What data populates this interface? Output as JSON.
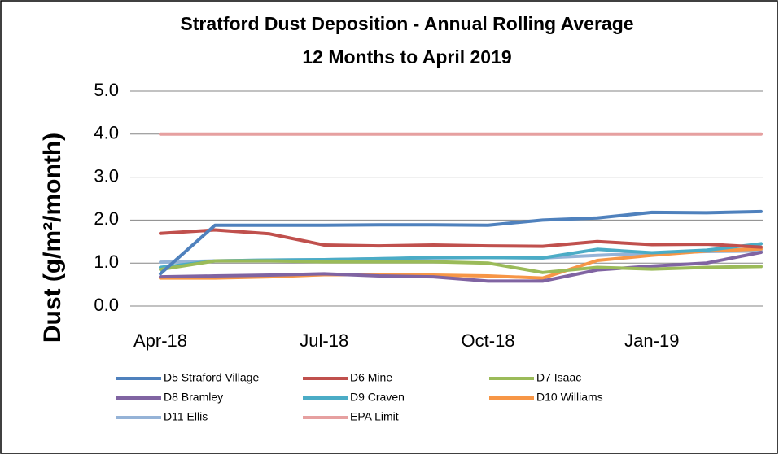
{
  "chart_data": {
    "type": "line",
    "title": "Stratford Dust Deposition - Annual Rolling Average",
    "subtitle": "12 Months to April 2019",
    "y_label": "Dust (g/m²/month)",
    "categories": [
      "Apr-18",
      null,
      null,
      "Jul-18",
      null,
      null,
      "Oct-18",
      null,
      null,
      "Jan-19",
      null,
      null
    ],
    "ylim": [
      0,
      5
    ],
    "yticks": [
      {
        "value": 0,
        "label": "0.0"
      },
      {
        "value": 1,
        "label": "1.0"
      },
      {
        "value": 2,
        "label": "2.0"
      },
      {
        "value": 3,
        "label": "3.0"
      },
      {
        "value": 4,
        "label": "4.0"
      },
      {
        "value": 5,
        "label": "5.0"
      }
    ],
    "grid": true,
    "legend": "bottom",
    "series": [
      {
        "name": "D5 Straford Village",
        "color": "#4f81bd",
        "values": [
          0.75,
          1.88,
          1.88,
          1.88,
          1.89,
          1.89,
          1.88,
          2.0,
          2.05,
          2.18,
          2.17,
          2.2
        ]
      },
      {
        "name": "D6 Mine",
        "color": "#c0504d",
        "values": [
          1.69,
          1.77,
          1.68,
          1.42,
          1.4,
          1.42,
          1.4,
          1.39,
          1.5,
          1.43,
          1.44,
          1.37
        ]
      },
      {
        "name": "D7 Isaac",
        "color": "#9bbb59",
        "values": [
          0.85,
          1.05,
          1.05,
          1.03,
          1.03,
          1.03,
          1.0,
          0.78,
          0.9,
          0.86,
          0.9,
          0.92
        ]
      },
      {
        "name": "D8 Bramley",
        "color": "#8064a2",
        "values": [
          0.68,
          0.7,
          0.72,
          0.75,
          0.7,
          0.68,
          0.58,
          0.58,
          0.84,
          0.93,
          1.0,
          1.25
        ]
      },
      {
        "name": "D9 Craven",
        "color": "#4bacc6",
        "values": [
          0.9,
          1.05,
          1.07,
          1.08,
          1.1,
          1.13,
          1.13,
          1.12,
          1.32,
          1.24,
          1.3,
          1.45
        ]
      },
      {
        "name": "D10 Williams",
        "color": "#f79646",
        "values": [
          0.65,
          0.65,
          0.68,
          0.73,
          0.73,
          0.72,
          0.7,
          0.65,
          1.06,
          1.18,
          1.28,
          1.33
        ]
      },
      {
        "name": "D11 Ellis",
        "color": "#95b3d7",
        "values": [
          1.02,
          1.05,
          1.07,
          1.08,
          1.1,
          1.12,
          1.13,
          1.12,
          1.18,
          1.23,
          1.27,
          1.28
        ]
      },
      {
        "name": "EPA Limit",
        "color": "#e6a0a0",
        "values": [
          4,
          4,
          4,
          4,
          4,
          4,
          4,
          4,
          4,
          4,
          4,
          4
        ]
      }
    ]
  }
}
